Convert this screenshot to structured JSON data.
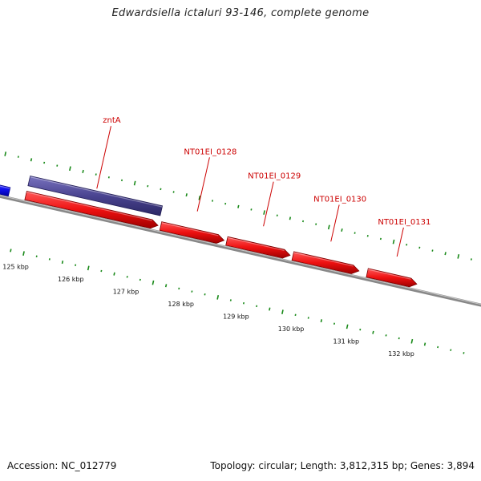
{
  "title": "Edwardsiella ictaluri 93-146, complete genome",
  "footer": {
    "accession": "Accession: NC_012779",
    "summary": "Topology: circular; Length: 3,812,315 bp; Genes: 3,894"
  },
  "scale": {
    "start_kbp": 124.2,
    "end_kbp": 132.8,
    "ticks": [
      {
        "kbp": 125,
        "label": "125 kbp"
      },
      {
        "kbp": 126,
        "label": "126 kbp"
      },
      {
        "kbp": 127,
        "label": "127 kbp"
      },
      {
        "kbp": 128,
        "label": "128 kbp"
      },
      {
        "kbp": 129,
        "label": "129 kbp"
      },
      {
        "kbp": 130,
        "label": "130 kbp"
      },
      {
        "kbp": 131,
        "label": "131 kbp"
      },
      {
        "kbp": 132,
        "label": "132 kbp"
      }
    ]
  },
  "features": [
    {
      "name": "left-edge-feature",
      "label": "",
      "start_kbp": 124.2,
      "end_kbp": 124.6,
      "track": "outer-blue",
      "color": "#1010ee",
      "arrow": false
    },
    {
      "name": "zntA",
      "label": "zntA",
      "start_kbp": 124.9,
      "end_kbp": 127.3,
      "track": "outer-purple",
      "color": "#4a4490",
      "arrow": false
    },
    {
      "name": "zntA-cds",
      "label": "",
      "start_kbp": 124.9,
      "end_kbp": 127.3,
      "track": "red",
      "color": "#ee1111",
      "arrow": true
    },
    {
      "name": "NT01EI_0128",
      "label": "NT01EI_0128",
      "start_kbp": 127.35,
      "end_kbp": 128.5,
      "track": "red",
      "color": "#ee1111",
      "arrow": true
    },
    {
      "name": "NT01EI_0129",
      "label": "NT01EI_0129",
      "start_kbp": 128.55,
      "end_kbp": 129.7,
      "track": "red",
      "color": "#ee1111",
      "arrow": true
    },
    {
      "name": "NT01EI_0130",
      "label": "NT01EI_0130",
      "start_kbp": 129.75,
      "end_kbp": 130.95,
      "track": "red",
      "color": "#ee1111",
      "arrow": true
    },
    {
      "name": "NT01EI_0131",
      "label": "NT01EI_0131",
      "start_kbp": 131.1,
      "end_kbp": 132.0,
      "track": "red",
      "color": "#ee1111",
      "arrow": true
    }
  ],
  "colors": {
    "backbone": "#888888",
    "label": "#cc0000",
    "gc_dots": "#1a8a1a",
    "tick_text": "#111111"
  }
}
